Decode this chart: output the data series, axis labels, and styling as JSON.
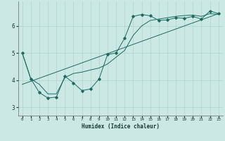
{
  "xlabel": "Humidex (Indice chaleur)",
  "bg_color": "#cce8e4",
  "grid_color": "#aad4cc",
  "line_color": "#1a6b60",
  "xlim": [
    -0.5,
    23.5
  ],
  "ylim": [
    2.7,
    6.9
  ],
  "xticks": [
    0,
    1,
    2,
    3,
    4,
    5,
    6,
    7,
    8,
    9,
    10,
    11,
    12,
    13,
    14,
    15,
    16,
    17,
    18,
    19,
    20,
    21,
    22,
    23
  ],
  "yticks": [
    3,
    4,
    5,
    6
  ],
  "curve_zigzag_x": [
    0,
    1,
    2,
    3,
    4,
    5,
    6,
    7,
    8,
    9,
    10,
    11,
    12,
    13,
    14,
    15,
    16,
    17,
    18,
    19,
    20,
    21,
    22,
    23
  ],
  "curve_zigzag_y": [
    5.0,
    4.05,
    3.55,
    3.35,
    3.38,
    4.15,
    3.9,
    3.62,
    3.68,
    4.05,
    4.95,
    5.0,
    5.55,
    6.35,
    6.42,
    6.37,
    6.2,
    6.22,
    6.3,
    6.28,
    6.35,
    6.25,
    6.55,
    6.45
  ],
  "curve_smooth_x": [
    0,
    1,
    2,
    3,
    4,
    5,
    6,
    7,
    8,
    9,
    10,
    11,
    12,
    13,
    14,
    15,
    16,
    17,
    18,
    19,
    20,
    21,
    22,
    23
  ],
  "curve_smooth_y": [
    5.0,
    4.05,
    3.85,
    3.5,
    3.5,
    4.1,
    4.25,
    4.3,
    4.38,
    4.45,
    4.6,
    4.85,
    5.1,
    5.65,
    6.0,
    6.2,
    6.25,
    6.3,
    6.35,
    6.38,
    6.4,
    6.35,
    6.45,
    6.42
  ],
  "trend_x": [
    0,
    23
  ],
  "trend_y": [
    3.85,
    6.45
  ]
}
